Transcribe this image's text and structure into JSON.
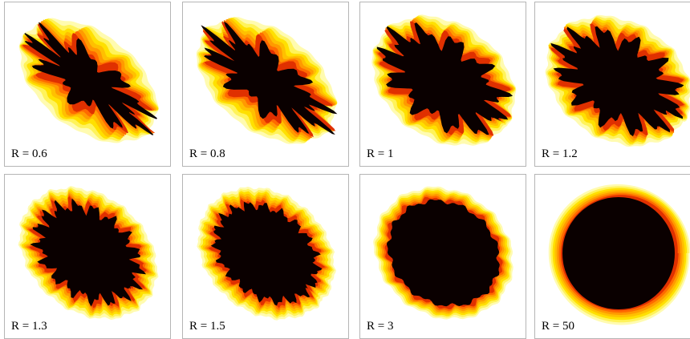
{
  "panels": [
    {
      "label": "R = 0.6"
    },
    {
      "label": "R = 0.8"
    },
    {
      "label": "R = 1"
    },
    {
      "label": "R = 1.2"
    },
    {
      "label": "R = 1.3"
    },
    {
      "label": "R = 1.5"
    },
    {
      "label": "R = 3"
    },
    {
      "label": "R = 50"
    }
  ]
}
